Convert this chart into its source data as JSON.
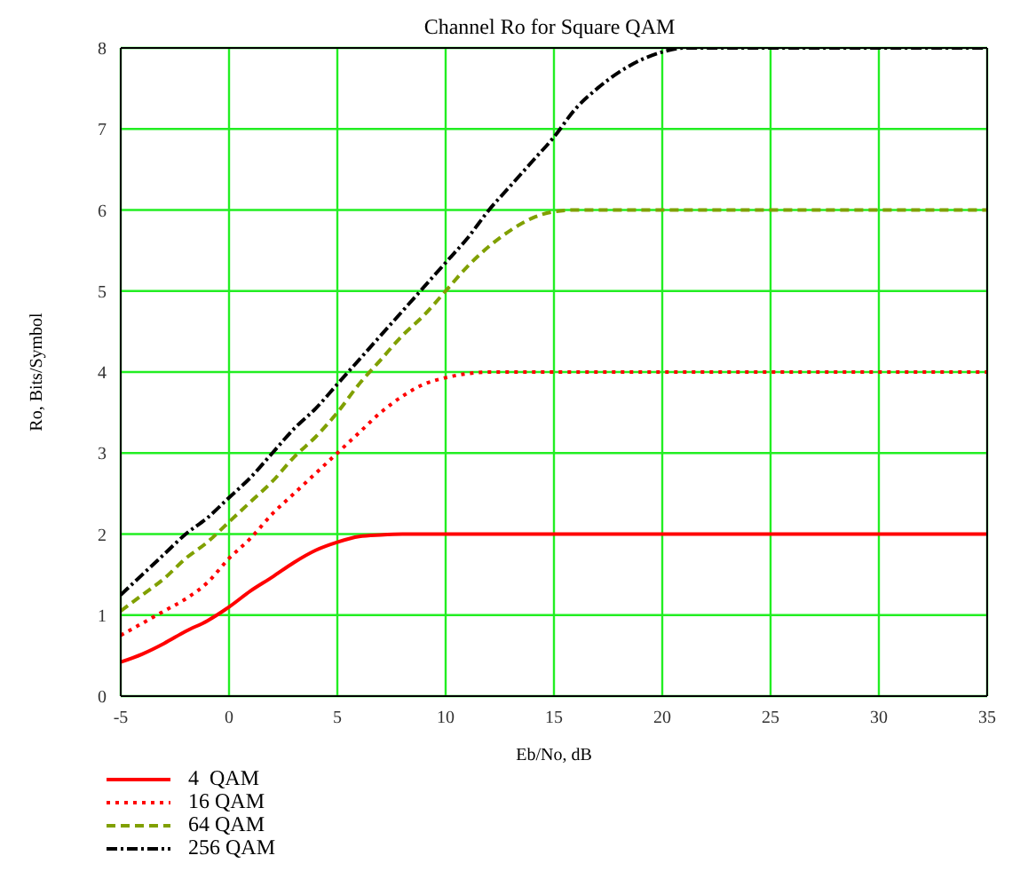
{
  "chart_data": {
    "type": "line",
    "title": "Channel Ro for Square QAM",
    "xlabel": "Eb/No, dB",
    "ylabel": "Ro, Bits/Symbol",
    "xlim": [
      -5,
      35
    ],
    "xticks": [
      -5,
      0,
      5,
      10,
      15,
      20,
      25,
      30,
      35
    ],
    "ylim": [
      0,
      8
    ],
    "yticks": [
      0,
      1,
      2,
      3,
      4,
      5,
      6,
      7,
      8
    ],
    "grid": true,
    "legend": "bottom left",
    "marker": "none",
    "series": [
      {
        "name": "4  QAM",
        "color": "#ff0000",
        "line_style": "solid",
        "x": [
          -5,
          -4,
          -3,
          -2,
          -1,
          0,
          1,
          2,
          3,
          4,
          5,
          6,
          7,
          8,
          35
        ],
        "values": [
          0.42,
          0.52,
          0.65,
          0.8,
          0.93,
          1.1,
          1.3,
          1.47,
          1.65,
          1.8,
          1.9,
          1.97,
          1.99,
          2,
          2
        ]
      },
      {
        "name": "16 QAM",
        "color": "#ff0000",
        "line_style": "dotted",
        "x": [
          -5,
          -4,
          -3,
          -2,
          -1,
          0,
          1,
          2,
          3,
          4,
          5,
          6,
          7,
          8,
          9,
          10,
          11,
          12,
          35
        ],
        "values": [
          0.75,
          0.9,
          1.05,
          1.2,
          1.4,
          1.7,
          1.95,
          2.25,
          2.5,
          2.75,
          3,
          3.25,
          3.5,
          3.7,
          3.85,
          3.93,
          3.98,
          4,
          4
        ]
      },
      {
        "name": "64 QAM",
        "color": "#80a000",
        "line_style": "dashed",
        "x": [
          -5,
          -4,
          -3,
          -2,
          -1,
          0,
          1,
          2,
          3,
          4,
          5,
          6,
          7,
          8,
          9,
          10,
          11,
          12,
          13,
          14,
          15,
          16,
          35
        ],
        "values": [
          1.05,
          1.25,
          1.45,
          1.7,
          1.9,
          2.15,
          2.4,
          2.65,
          2.95,
          3.2,
          3.5,
          3.85,
          4.15,
          4.45,
          4.7,
          5,
          5.3,
          5.55,
          5.75,
          5.9,
          5.98,
          6,
          6
        ]
      },
      {
        "name": "256 QAM",
        "color": "#000000",
        "line_style": "dashdot",
        "x": [
          -5,
          -4,
          -3,
          -2,
          -1,
          0,
          1,
          2,
          3,
          4,
          5,
          6,
          7,
          8,
          9,
          10,
          11,
          12,
          13,
          14,
          15,
          16,
          17,
          18,
          19,
          20,
          21,
          35
        ],
        "values": [
          1.25,
          1.5,
          1.75,
          2,
          2.2,
          2.45,
          2.7,
          3,
          3.3,
          3.55,
          3.85,
          4.15,
          4.45,
          4.75,
          5.05,
          5.35,
          5.65,
          6,
          6.3,
          6.6,
          6.9,
          7.25,
          7.5,
          7.7,
          7.85,
          7.95,
          8,
          8
        ]
      }
    ]
  }
}
